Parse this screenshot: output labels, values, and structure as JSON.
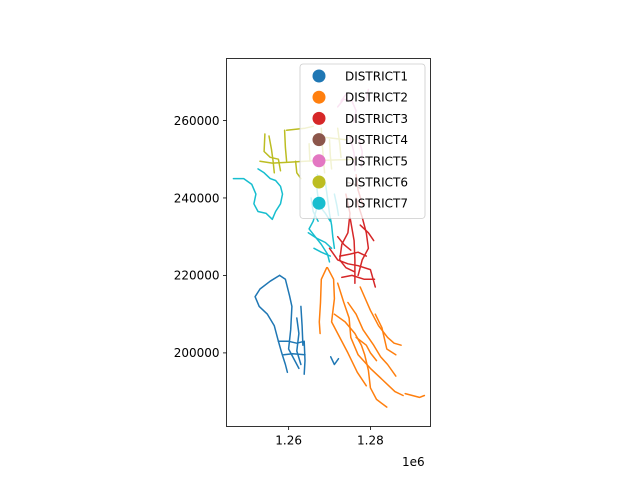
{
  "chart_data": {
    "type": "map",
    "title": "",
    "xlabel": "",
    "ylabel": "",
    "x_offset_label": "1e6",
    "xlim": [
      1.2448,
      1.2947
    ],
    "ylim": [
      181000,
      276000
    ],
    "x_ticks": [
      {
        "value": 1.26,
        "label": "1.26"
      },
      {
        "value": 1.28,
        "label": "1.28"
      }
    ],
    "y_ticks": [
      {
        "value": 200000,
        "label": "200000"
      },
      {
        "value": 220000,
        "label": "220000"
      },
      {
        "value": 240000,
        "label": "240000"
      },
      {
        "value": 260000,
        "label": "260000"
      }
    ],
    "legend_position": "top-right",
    "series": [
      {
        "name": "DISTRICT1",
        "color": "#1f77b4",
        "lines": [
          [
            [
              1.2578,
              220
            ],
            [
              1.2555,
              218.5
            ],
            [
              1.253,
              216.5
            ],
            [
              1.2518,
              214.5
            ],
            [
              1.2528,
              212
            ],
            [
              1.2548,
              210
            ],
            [
              1.2565,
              207
            ],
            [
              1.2575,
              203
            ],
            [
              1.2583,
              200
            ],
            [
              1.2592,
              197
            ],
            [
              1.2597,
              195
            ]
          ],
          [
            [
              1.2578,
              220
            ],
            [
              1.2592,
              219
            ],
            [
              1.2602,
              214.8
            ],
            [
              1.2608,
              212
            ],
            [
              1.2605,
              206
            ],
            [
              1.26,
              201
            ],
            [
              1.2615,
              198
            ],
            [
              1.2625,
              196
            ]
          ],
          [
            [
              1.2575,
              203
            ],
            [
              1.26,
              203
            ],
            [
              1.262,
              202.5
            ],
            [
              1.2638,
              203
            ],
            [
              1.264,
              198
            ],
            [
              1.2638,
              194.5
            ]
          ],
          [
            [
              1.262,
              209
            ],
            [
              1.2625,
              205
            ],
            [
              1.262,
              200.5
            ],
            [
              1.263,
              197
            ]
          ],
          [
            [
              1.263,
              212
            ],
            [
              1.2633,
              207
            ],
            [
              1.2635,
              202
            ]
          ],
          [
            [
              1.2588,
              199.5
            ],
            [
              1.261,
              199.8
            ],
            [
              1.264,
              199.5
            ]
          ],
          [
            [
              1.2703,
              199
            ],
            [
              1.2712,
              197
            ],
            [
              1.2722,
              198.5
            ]
          ]
        ]
      },
      {
        "name": "DISTRICT2",
        "color": "#ff7f0e",
        "lines": [
          [
            [
              1.2693,
              222
            ],
            [
              1.268,
              219
            ],
            [
              1.2678,
              213
            ],
            [
              1.2675,
              208
            ],
            [
              1.2677,
              205
            ]
          ],
          [
            [
              1.2695,
              222
            ],
            [
              1.271,
              219
            ],
            [
              1.2712,
              214
            ],
            [
              1.2705,
              208
            ],
            [
              1.272,
              205
            ],
            [
              1.2745,
              200
            ],
            [
              1.2768,
              195
            ],
            [
              1.279,
              191.5
            ]
          ],
          [
            [
              1.272,
              218
            ],
            [
              1.2735,
              213
            ],
            [
              1.2748,
              209
            ],
            [
              1.2752,
              204
            ],
            [
              1.277,
              199.5
            ],
            [
              1.28,
              196
            ],
            [
              1.283,
              193
            ],
            [
              1.286,
              190
            ],
            [
              1.288,
              189
            ]
          ],
          [
            [
              1.2745,
              213
            ],
            [
              1.2765,
              210
            ],
            [
              1.2782,
              206
            ],
            [
              1.2808,
              202
            ],
            [
              1.2825,
              199
            ],
            [
              1.2842,
              197
            ],
            [
              1.2862,
              194
            ]
          ],
          [
            [
              1.2775,
              217
            ],
            [
              1.28,
              211
            ],
            [
              1.282,
              207
            ],
            [
              1.2842,
              204
            ],
            [
              1.2858,
              202.5
            ],
            [
              1.2875,
              202
            ]
          ],
          [
            [
              1.2712,
              210
            ],
            [
              1.2738,
              208
            ],
            [
              1.2762,
              205
            ],
            [
              1.2778,
              202
            ],
            [
              1.2786,
              199.5
            ],
            [
              1.2795,
              195.5
            ],
            [
              1.28,
              191
            ],
            [
              1.2815,
              188
            ],
            [
              1.284,
              186
            ]
          ],
          [
            [
              1.2812,
              210
            ],
            [
              1.2828,
              206.5
            ],
            [
              1.284,
              201
            ],
            [
              1.2862,
              199.5
            ]
          ],
          [
            [
              1.2765,
              204
            ],
            [
              1.279,
              202
            ],
            [
              1.28,
              200
            ],
            [
              1.2815,
              198
            ]
          ],
          [
            [
              1.2885,
              189.5
            ],
            [
              1.292,
              188.5
            ],
            [
              1.2932,
              189
            ]
          ]
        ]
      },
      {
        "name": "DISTRICT3",
        "color": "#d62728",
        "lines": [
          [
            [
              1.274,
              241
            ],
            [
              1.275,
              236
            ],
            [
              1.2745,
              231
            ],
            [
              1.273,
              228
            ],
            [
              1.2725,
              224
            ],
            [
              1.274,
              222
            ],
            [
              1.276,
              221
            ]
          ],
          [
            [
              1.2765,
              240
            ],
            [
              1.278,
              235
            ],
            [
              1.279,
              231
            ],
            [
              1.2795,
              227
            ],
            [
              1.278,
              224
            ],
            [
              1.277,
              220
            ]
          ],
          [
            [
              1.2725,
              225
            ],
            [
              1.275,
              225.5
            ],
            [
              1.277,
              226
            ],
            [
              1.279,
              225
            ]
          ],
          [
            [
              1.27,
              227
            ],
            [
              1.272,
              224
            ],
            [
              1.2745,
              223
            ],
            [
              1.277,
              222.5
            ],
            [
              1.28,
              221.5
            ],
            [
              1.2812,
              217
            ]
          ],
          [
            [
              1.275,
              235
            ],
            [
              1.276,
              229
            ],
            [
              1.2762,
              224
            ],
            [
              1.2762,
              218
            ]
          ],
          [
            [
              1.2775,
              233
            ],
            [
              1.2795,
              231
            ],
            [
              1.2808,
              229
            ]
          ],
          [
            [
              1.273,
              219.5
            ],
            [
              1.2755,
              220
            ],
            [
              1.2785,
              219
            ],
            [
              1.281,
              219
            ]
          ],
          [
            [
              1.272,
              230
            ],
            [
              1.2735,
              228
            ],
            [
              1.2752,
              226.5
            ]
          ],
          [
            [
              1.2765,
              246
            ],
            [
              1.277,
              242
            ],
            [
              1.2782,
              238
            ]
          ]
        ]
      },
      {
        "name": "DISTRICT4",
        "color": "#8c564b",
        "lines": [
          [
            [
              1.2745,
              244
            ],
            [
              1.276,
              243.5
            ],
            [
              1.2775,
              242.5
            ]
          ]
        ]
      },
      {
        "name": "DISTRICT5",
        "color": "#e377c2",
        "lines": [
          [
            [
              1.272,
              263.5
            ],
            [
              1.2735,
              265.5
            ],
            [
              1.2755,
              265
            ],
            [
              1.2765,
              262.5
            ],
            [
              1.276,
              259.5
            ]
          ],
          [
            [
              1.2728,
              265
            ],
            [
              1.2742,
              267
            ]
          ],
          [
            [
              1.279,
              265.5
            ],
            [
              1.2795,
              268
            ]
          ],
          [
            [
              1.2772,
              255
            ],
            [
              1.278,
              252
            ],
            [
              1.2778,
              248
            ]
          ],
          [
            [
              1.275,
              256
            ],
            [
              1.276,
              251.5
            ],
            [
              1.2762,
              247
            ]
          ]
        ]
      },
      {
        "name": "DISTRICT6",
        "color": "#bcbd22",
        "lines": [
          [
            [
              1.2542,
              256.5
            ],
            [
              1.254,
              252
            ],
            [
              1.2555,
              250.5
            ],
            [
              1.2575,
              250
            ],
            [
              1.258,
              247
            ]
          ],
          [
            [
              1.253,
              249.5
            ],
            [
              1.256,
              249
            ],
            [
              1.26,
              249.2
            ],
            [
              1.264,
              249.5
            ],
            [
              1.268,
              249.7
            ],
            [
              1.271,
              249.8
            ],
            [
              1.274,
              249.9
            ],
            [
              1.2762,
              250
            ]
          ],
          [
            [
              1.2552,
              256
            ],
            [
              1.2558,
              252.5
            ],
            [
              1.2562,
              249.5
            ],
            [
              1.2565,
              246.5
            ]
          ],
          [
            [
              1.259,
              257.5
            ],
            [
              1.2592,
              253
            ],
            [
              1.2595,
              249.5
            ]
          ],
          [
            [
              1.2595,
              257.5
            ],
            [
              1.264,
              258
            ],
            [
              1.266,
              258.5
            ]
          ],
          [
            [
              1.268,
              258
            ],
            [
              1.2682,
              254
            ],
            [
              1.2685,
              250
            ],
            [
              1.2688,
              246.5
            ]
          ],
          [
            [
              1.27,
              255
            ],
            [
              1.2702,
              251
            ],
            [
              1.2705,
              247.5
            ]
          ],
          [
            [
              1.272,
              258
            ],
            [
              1.2725,
              254
            ],
            [
              1.2728,
              250.5
            ]
          ],
          [
            [
              1.2617,
              249.5
            ],
            [
              1.262,
              246.5
            ],
            [
              1.263,
              245
            ]
          ],
          [
            [
              1.265,
              254
            ],
            [
              1.2652,
              249.5
            ]
          ],
          [
            [
              1.2662,
              256
            ],
            [
              1.27,
              255.5
            ],
            [
              1.274,
              255
            ]
          ]
        ]
      },
      {
        "name": "DISTRICT7",
        "color": "#17becf",
        "lines": [
          [
            [
              1.2465,
              245
            ],
            [
              1.249,
              245
            ],
            [
              1.251,
              243.5
            ],
            [
              1.252,
              241
            ],
            [
              1.2515,
              238.5
            ],
            [
              1.2525,
              236.5
            ],
            [
              1.2545,
              236
            ],
            [
              1.256,
              234.5
            ],
            [
              1.2568,
              236.5
            ],
            [
              1.258,
              238.5
            ],
            [
              1.2585,
              241
            ],
            [
              1.258,
              243
            ],
            [
              1.2568,
              244.5
            ],
            [
              1.2555,
              245
            ],
            [
              1.254,
              246.5
            ],
            [
              1.2525,
              247.5
            ]
          ],
          [
            [
              1.2668,
              243.5
            ],
            [
              1.2672,
              240
            ],
            [
              1.2668,
              237
            ],
            [
              1.266,
              234
            ],
            [
              1.265,
              232
            ],
            [
              1.2665,
              230
            ],
            [
              1.268,
              228
            ],
            [
              1.2695,
              225.5
            ],
            [
              1.27,
              223.5
            ]
          ],
          [
            [
              1.2648,
              231
            ],
            [
              1.267,
              229.5
            ],
            [
              1.269,
              228.5
            ],
            [
              1.2705,
              227
            ]
          ],
          [
            [
              1.2662,
              227
            ],
            [
              1.268,
              226
            ],
            [
              1.2702,
              225
            ]
          ],
          [
            [
              1.269,
              244
            ],
            [
              1.2695,
              240
            ],
            [
              1.27,
              236
            ],
            [
              1.2705,
              233
            ],
            [
              1.2708,
              230
            ],
            [
              1.2712,
              227
            ]
          ],
          [
            [
              1.2675,
              238
            ],
            [
              1.269,
              236
            ],
            [
              1.2702,
              234
            ]
          ],
          [
            [
              1.267,
              246
            ],
            [
              1.2675,
              244.5
            ]
          ],
          [
            [
              1.2655,
              240
            ],
            [
              1.266,
              236.5
            ],
            [
              1.2672,
              234
            ]
          ],
          [
            [
              1.2712,
              241
            ],
            [
              1.2718,
              238
            ],
            [
              1.2722,
              235.5
            ]
          ]
        ]
      }
    ]
  }
}
